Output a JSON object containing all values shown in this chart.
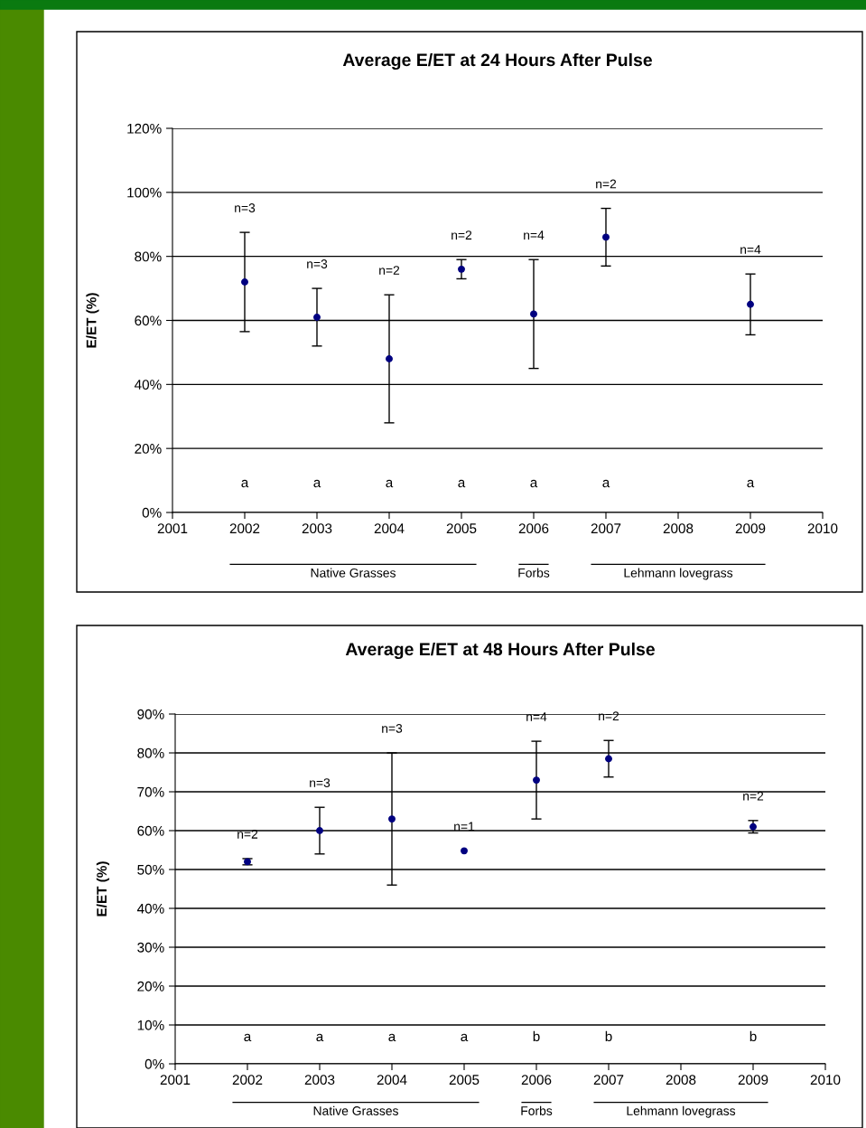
{
  "chart_data": [
    {
      "type": "scatter",
      "title": "Average E/ET at 24 Hours After Pulse",
      "ylabel": "E/ET (%)",
      "x": [
        2002,
        2003,
        2004,
        2005,
        2006,
        2007,
        2009
      ],
      "series": [
        {
          "color": "#000080",
          "values": [
            72,
            61,
            48,
            76,
            62,
            86,
            65
          ],
          "errors": [
            15.5,
            9,
            20,
            3,
            17,
            9,
            9.5
          ]
        }
      ],
      "xlim": [
        2001,
        2010
      ],
      "xticks": [
        2001,
        2002,
        2003,
        2004,
        2005,
        2006,
        2007,
        2008,
        2009,
        2010
      ],
      "ylim": [
        0,
        120
      ],
      "yticks": [
        {
          "value": 0,
          "label": "0%"
        },
        {
          "value": 20,
          "label": "20%"
        },
        {
          "value": 40,
          "label": "40%"
        },
        {
          "value": 60,
          "label": "60%"
        },
        {
          "value": 80,
          "label": "80%"
        },
        {
          "value": 100,
          "label": "100%"
        },
        {
          "value": 120,
          "label": "120%"
        }
      ],
      "grid": "y",
      "marker": "circle",
      "annotations": [
        "n=3",
        "n=3",
        "n=2",
        "n=2",
        "n=4",
        "n=2",
        "n=4",
        "a",
        "a",
        "a",
        "a",
        "a",
        "a",
        "a",
        "Native Grasses",
        "Forbs",
        "Lehmann lovegrass"
      ]
    },
    {
      "type": "scatter",
      "title": "Average E/ET at 48 Hours After Pulse",
      "ylabel": "E/ET (%)",
      "x": [
        2002,
        2003,
        2004,
        2005,
        2006,
        2007,
        2009
      ],
      "series": [
        {
          "color": "#000080",
          "values": [
            52,
            60,
            63,
            54.8,
            73,
            78.5,
            61
          ],
          "errors": [
            0.8,
            6,
            17,
            null,
            10,
            4.7,
            1.6
          ]
        }
      ],
      "xlim": [
        2001,
        2010
      ],
      "xticks": [
        2001,
        2002,
        2003,
        2004,
        2005,
        2006,
        2007,
        2008,
        2009,
        2010
      ],
      "ylim": [
        0,
        90
      ],
      "yticks": [
        {
          "value": 0,
          "label": "0%"
        },
        {
          "value": 10,
          "label": "10%"
        },
        {
          "value": 20,
          "label": "20%"
        },
        {
          "value": 30,
          "label": "30%"
        },
        {
          "value": 40,
          "label": "40%"
        },
        {
          "value": 50,
          "label": "50%"
        },
        {
          "value": 60,
          "label": "60%"
        },
        {
          "value": 70,
          "label": "70%"
        },
        {
          "value": 80,
          "label": "80%"
        },
        {
          "value": 90,
          "label": "90%"
        }
      ],
      "grid": "y",
      "marker": "circle",
      "annotations": [
        "n=2",
        "n=3",
        "n=3",
        "n=1",
        "n=4",
        "n=2",
        "n=2",
        "a",
        "a",
        "a",
        "a",
        "b",
        "b",
        "b",
        "Native Grasses",
        "Forbs",
        "Lehmann lovegrass"
      ]
    }
  ]
}
